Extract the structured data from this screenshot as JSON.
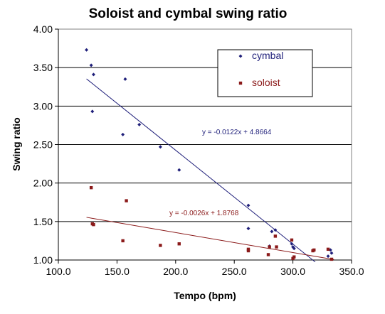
{
  "chart_data": {
    "type": "scatter",
    "title": "Soloist and cymbal swing ratio",
    "xlabel": "Tempo (bpm)",
    "ylabel": "Swing ratio",
    "xlim": [
      100,
      350
    ],
    "ylim": [
      1.0,
      4.0
    ],
    "x_ticks": [
      "100.0",
      "150.0",
      "200.0",
      "250.0",
      "300.0",
      "350.0"
    ],
    "y_ticks": [
      "1.00",
      "1.50",
      "2.00",
      "2.50",
      "3.00",
      "3.50",
      "4.00"
    ],
    "grid": "horizontal",
    "legend_position": "top-right",
    "series": [
      {
        "name": "cymbal",
        "color": "#1f1f7a",
        "marker": "diamond",
        "points": [
          [
            124,
            3.73
          ],
          [
            128,
            3.53
          ],
          [
            129,
            2.93
          ],
          [
            130,
            3.41
          ],
          [
            155,
            2.63
          ],
          [
            157,
            3.35
          ],
          [
            169,
            2.76
          ],
          [
            187,
            2.47
          ],
          [
            203,
            2.17
          ],
          [
            262,
            1.71
          ],
          [
            262,
            1.41
          ],
          [
            280,
            1.18
          ],
          [
            282,
            1.37
          ],
          [
            285,
            1.39
          ],
          [
            299,
            1.21
          ],
          [
            300,
            1.17
          ],
          [
            301,
            1.15
          ],
          [
            330,
            1.05
          ],
          [
            332,
            1.13
          ],
          [
            333,
            1.09
          ]
        ],
        "trendline": {
          "slope": -0.0122,
          "intercept": 4.8664,
          "x_range": [
            124,
            319
          ],
          "label": "y = -0.0122x + 4.8664",
          "label_color": "#1f1f7a"
        }
      },
      {
        "name": "soloist",
        "color": "#8b1a1a",
        "marker": "square",
        "points": [
          [
            128,
            1.94
          ],
          [
            129,
            1.47
          ],
          [
            130,
            1.46
          ],
          [
            155,
            1.25
          ],
          [
            158,
            1.77
          ],
          [
            187,
            1.19
          ],
          [
            203,
            1.21
          ],
          [
            262,
            1.12
          ],
          [
            262,
            1.14
          ],
          [
            279,
            1.07
          ],
          [
            280,
            1.17
          ],
          [
            285,
            1.31
          ],
          [
            286,
            1.17
          ],
          [
            299,
            1.26
          ],
          [
            300,
            1.02
          ],
          [
            301,
            1.04
          ],
          [
            317,
            1.12
          ],
          [
            318,
            1.13
          ],
          [
            330,
            1.14
          ],
          [
            333,
            1.01
          ]
        ],
        "trendline": {
          "slope": -0.0026,
          "intercept": 1.8768,
          "x_range": [
            124,
            335
          ],
          "label": "y = -0.0026x + 1.8768",
          "label_color": "#8b1a1a"
        }
      }
    ]
  }
}
